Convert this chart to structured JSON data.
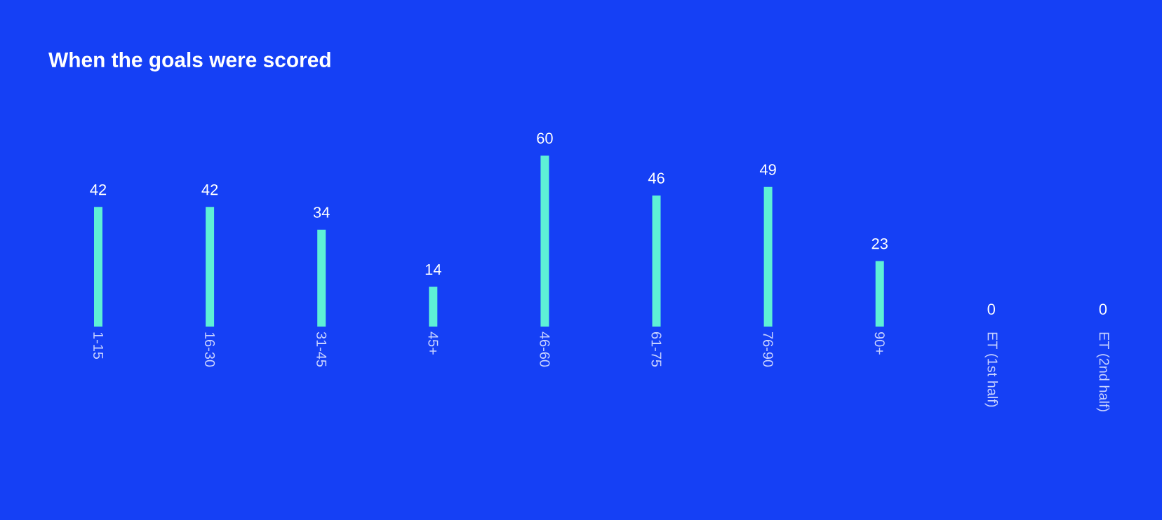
{
  "chart_data": {
    "type": "bar",
    "title": "When the goals were scored",
    "categories": [
      "1-15",
      "16-30",
      "31-45",
      "45+",
      "46-60",
      "61-75",
      "76-90",
      "90+",
      "ET (1st half)",
      "ET (2nd half)"
    ],
    "values": [
      42,
      42,
      34,
      14,
      60,
      46,
      49,
      23,
      0,
      0
    ],
    "color": "#5ef0d6",
    "data_labels": true
  }
}
